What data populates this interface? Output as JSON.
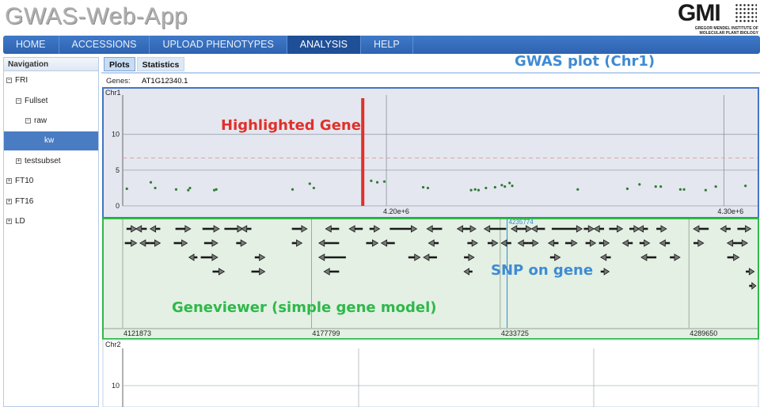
{
  "app": {
    "title": "GWAS-Web-App",
    "logo_mark": "GMI",
    "logo_subtitle": "GREGOR MENDEL INSTITUTE OF MOLECULAR PLANT BIOLOGY"
  },
  "topnav": {
    "tabs": [
      {
        "label": "HOME",
        "active": false
      },
      {
        "label": "ACCESSIONS",
        "active": false
      },
      {
        "label": "UPLOAD PHENOTYPES",
        "active": false
      },
      {
        "label": "ANALYSIS",
        "active": true
      },
      {
        "label": "HELP",
        "active": false
      }
    ]
  },
  "sidebar": {
    "header": "Navigation",
    "items": [
      {
        "label": "FRI",
        "toggle": "⊟",
        "level": 0,
        "selected": false
      },
      {
        "label": "Fullset",
        "toggle": "⊟",
        "level": 1,
        "selected": false
      },
      {
        "label": "raw",
        "toggle": "⊟",
        "level": 2,
        "selected": false
      },
      {
        "label": "kw",
        "toggle": "",
        "level": 3,
        "selected": true
      },
      {
        "label": "testsubset",
        "toggle": "⊞",
        "level": 1,
        "selected": false
      },
      {
        "label": "FT10",
        "toggle": "⊞",
        "level": 0,
        "selected": false
      },
      {
        "label": "FT16",
        "toggle": "⊞",
        "level": 0,
        "selected": false
      },
      {
        "label": "LD",
        "toggle": "⊞",
        "level": 0,
        "selected": false
      }
    ]
  },
  "subtabs": [
    {
      "label": "Plots",
      "active": true
    },
    {
      "label": "Statistics",
      "active": false
    }
  ],
  "genes": {
    "label": "Genes:",
    "value": "AT1G12340.1"
  },
  "annotations": {
    "gwas_plot": "GWAS plot (Chr1)",
    "highlighted_gene": "Highlighted Gene",
    "snp_on_gene": "SNP on gene",
    "geneviewer": "Geneviewer (simple gene model)"
  },
  "colors": {
    "nav_blue": "#2e63b0",
    "point_green": "#2e7d32",
    "highlight_red": "#e0302a",
    "threshold_pink": "#e4a0a8",
    "anno_blue": "#3f8bd3",
    "anno_green": "#2fb84a",
    "gene_panel_bg": "#e3f0e3",
    "snp_blue": "#2d8ad6"
  },
  "chart_data": [
    {
      "type": "scatter",
      "title": "Chr1",
      "x_ticks": [
        "4.20e+6",
        "4.30e+6"
      ],
      "y_ticks": [
        0,
        5,
        10
      ],
      "ylim": [
        0,
        15.5
      ],
      "xlim": [
        4121873,
        4310000
      ],
      "threshold_y": 6.7,
      "highlighted_gene_x": 4193000,
      "points": [
        [
          4123100,
          2.4
        ],
        [
          4130200,
          3.3
        ],
        [
          4131500,
          2.5
        ],
        [
          4137700,
          2.3
        ],
        [
          4141300,
          2.2
        ],
        [
          4141800,
          2.5
        ],
        [
          4149000,
          2.2
        ],
        [
          4149600,
          2.3
        ],
        [
          4172200,
          2.3
        ],
        [
          4177300,
          3.1
        ],
        [
          4178500,
          2.5
        ],
        [
          4195500,
          3.5
        ],
        [
          4197300,
          3.3
        ],
        [
          4199400,
          3.4
        ],
        [
          4210900,
          2.6
        ],
        [
          4212300,
          2.5
        ],
        [
          4225100,
          2.2
        ],
        [
          4226300,
          2.3
        ],
        [
          4227300,
          2.2
        ],
        [
          4229500,
          2.5
        ],
        [
          4232200,
          2.6
        ],
        [
          4234200,
          2.9
        ],
        [
          4235100,
          2.7
        ],
        [
          4236500,
          3.2
        ],
        [
          4237300,
          2.8
        ],
        [
          4256700,
          2.3
        ],
        [
          4271400,
          2.4
        ],
        [
          4275000,
          3.0
        ],
        [
          4279800,
          2.7
        ],
        [
          4281300,
          2.7
        ],
        [
          4287100,
          2.3
        ],
        [
          4288200,
          2.3
        ],
        [
          4294600,
          2.2
        ],
        [
          4297600,
          2.7
        ],
        [
          4306400,
          2.8
        ]
      ]
    },
    {
      "type": "scatter",
      "title": "Chr2",
      "y_ticks": [
        10
      ],
      "points": []
    }
  ],
  "geneviewer": {
    "x_ticks": [
      "4121873",
      "4177799",
      "4233725",
      "4289650"
    ],
    "snp_label": "4235774",
    "genes": [
      {
        "row": 0,
        "start": 4123000,
        "end": 4126000,
        "strand": "+"
      },
      {
        "row": 0,
        "start": 4125800,
        "end": 4129000,
        "strand": "-"
      },
      {
        "row": 0,
        "start": 4130000,
        "end": 4133000,
        "strand": "-"
      },
      {
        "row": 0,
        "start": 4137500,
        "end": 4142000,
        "strand": "+"
      },
      {
        "row": 0,
        "start": 4145500,
        "end": 4150500,
        "strand": "+"
      },
      {
        "row": 0,
        "start": 4152000,
        "end": 4157500,
        "strand": "+"
      },
      {
        "row": 0,
        "start": 4157000,
        "end": 4160000,
        "strand": "-"
      },
      {
        "row": 0,
        "start": 4172000,
        "end": 4176500,
        "strand": "+"
      },
      {
        "row": 0,
        "start": 4182000,
        "end": 4186000,
        "strand": "-"
      },
      {
        "row": 0,
        "start": 4189000,
        "end": 4193000,
        "strand": "-"
      },
      {
        "row": 0,
        "start": 4195000,
        "end": 4198000,
        "strand": "+"
      },
      {
        "row": 0,
        "start": 4201000,
        "end": 4209000,
        "strand": "+"
      },
      {
        "row": 0,
        "start": 4212000,
        "end": 4216500,
        "strand": "-"
      },
      {
        "row": 0,
        "start": 4221000,
        "end": 4224000,
        "strand": "-"
      },
      {
        "row": 0,
        "start": 4223500,
        "end": 4226500,
        "strand": "+"
      },
      {
        "row": 0,
        "start": 4229000,
        "end": 4235500,
        "strand": "-"
      },
      {
        "row": 0,
        "start": 4237000,
        "end": 4240000,
        "strand": "-"
      },
      {
        "row": 0,
        "start": 4240000,
        "end": 4243000,
        "strand": "+"
      },
      {
        "row": 0,
        "start": 4243000,
        "end": 4247000,
        "strand": "-"
      },
      {
        "row": 0,
        "start": 4249000,
        "end": 4258000,
        "strand": "+"
      },
      {
        "row": 0,
        "start": 4258500,
        "end": 4261500,
        "strand": "+"
      },
      {
        "row": 0,
        "start": 4261500,
        "end": 4264500,
        "strand": "-"
      },
      {
        "row": 0,
        "start": 4266000,
        "end": 4270000,
        "strand": "+"
      },
      {
        "row": 0,
        "start": 4272000,
        "end": 4275000,
        "strand": "+"
      },
      {
        "row": 0,
        "start": 4274500,
        "end": 4277500,
        "strand": "-"
      },
      {
        "row": 0,
        "start": 4280000,
        "end": 4283000,
        "strand": "+"
      },
      {
        "row": 0,
        "start": 4291000,
        "end": 4295500,
        "strand": "-"
      },
      {
        "row": 0,
        "start": 4299000,
        "end": 4302000,
        "strand": "-"
      },
      {
        "row": 0,
        "start": 4304000,
        "end": 4308000,
        "strand": "+"
      },
      {
        "row": 1,
        "start": 4122500,
        "end": 4126000,
        "strand": "+"
      },
      {
        "row": 1,
        "start": 4127000,
        "end": 4130000,
        "strand": "-"
      },
      {
        "row": 1,
        "start": 4130000,
        "end": 4133000,
        "strand": "+"
      },
      {
        "row": 1,
        "start": 4137000,
        "end": 4141000,
        "strand": "+"
      },
      {
        "row": 1,
        "start": 4146000,
        "end": 4150000,
        "strand": "+"
      },
      {
        "row": 1,
        "start": 4155500,
        "end": 4158500,
        "strand": "+"
      },
      {
        "row": 1,
        "start": 4172000,
        "end": 4175000,
        "strand": "+"
      },
      {
        "row": 1,
        "start": 4180000,
        "end": 4186000,
        "strand": "-"
      },
      {
        "row": 1,
        "start": 4194000,
        "end": 4197500,
        "strand": "+"
      },
      {
        "row": 1,
        "start": 4198500,
        "end": 4202500,
        "strand": "-"
      },
      {
        "row": 1,
        "start": 4212500,
        "end": 4215500,
        "strand": "-"
      },
      {
        "row": 1,
        "start": 4224000,
        "end": 4227000,
        "strand": "+"
      },
      {
        "row": 1,
        "start": 4230000,
        "end": 4233000,
        "strand": "+"
      },
      {
        "row": 1,
        "start": 4234000,
        "end": 4237000,
        "strand": "-"
      },
      {
        "row": 1,
        "start": 4239000,
        "end": 4242000,
        "strand": "-"
      },
      {
        "row": 1,
        "start": 4242000,
        "end": 4245000,
        "strand": "+"
      },
      {
        "row": 1,
        "start": 4248000,
        "end": 4251000,
        "strand": "-"
      },
      {
        "row": 1,
        "start": 4253000,
        "end": 4256500,
        "strand": "+"
      },
      {
        "row": 1,
        "start": 4259000,
        "end": 4262000,
        "strand": "+"
      },
      {
        "row": 1,
        "start": 4263000,
        "end": 4266000,
        "strand": "+"
      },
      {
        "row": 1,
        "start": 4270000,
        "end": 4273000,
        "strand": "-"
      },
      {
        "row": 1,
        "start": 4275000,
        "end": 4278000,
        "strand": "+"
      },
      {
        "row": 1,
        "start": 4281000,
        "end": 4284000,
        "strand": "-"
      },
      {
        "row": 1,
        "start": 4291000,
        "end": 4294000,
        "strand": "+"
      },
      {
        "row": 1,
        "start": 4301000,
        "end": 4304000,
        "strand": "-"
      },
      {
        "row": 1,
        "start": 4304000,
        "end": 4307000,
        "strand": "+"
      },
      {
        "row": 2,
        "start": 4141500,
        "end": 4144000,
        "strand": "-"
      },
      {
        "row": 2,
        "start": 4145000,
        "end": 4150000,
        "strand": "+"
      },
      {
        "row": 2,
        "start": 4161000,
        "end": 4164000,
        "strand": "+"
      },
      {
        "row": 2,
        "start": 4180000,
        "end": 4188000,
        "strand": "-"
      },
      {
        "row": 2,
        "start": 4206500,
        "end": 4210000,
        "strand": "+"
      },
      {
        "row": 2,
        "start": 4211000,
        "end": 4215000,
        "strand": "-"
      },
      {
        "row": 2,
        "start": 4223000,
        "end": 4226000,
        "strand": "+"
      },
      {
        "row": 2,
        "start": 4248500,
        "end": 4251500,
        "strand": "+"
      },
      {
        "row": 2,
        "start": 4263500,
        "end": 4266500,
        "strand": "-"
      },
      {
        "row": 2,
        "start": 4275500,
        "end": 4280000,
        "strand": "-"
      },
      {
        "row": 2,
        "start": 4284000,
        "end": 4287000,
        "strand": "+"
      },
      {
        "row": 2,
        "start": 4301000,
        "end": 4304500,
        "strand": "+"
      },
      {
        "row": 3,
        "start": 4148500,
        "end": 4152000,
        "strand": "+"
      },
      {
        "row": 3,
        "start": 4160000,
        "end": 4164000,
        "strand": "+"
      },
      {
        "row": 3,
        "start": 4181500,
        "end": 4186000,
        "strand": "-"
      },
      {
        "row": 3,
        "start": 4223000,
        "end": 4225500,
        "strand": "-"
      },
      {
        "row": 3,
        "start": 4263500,
        "end": 4266000,
        "strand": "+"
      },
      {
        "row": 3,
        "start": 4306500,
        "end": 4309000,
        "strand": "+"
      },
      {
        "row": 4,
        "start": 4307500,
        "end": 4309500,
        "strand": "+"
      }
    ]
  }
}
